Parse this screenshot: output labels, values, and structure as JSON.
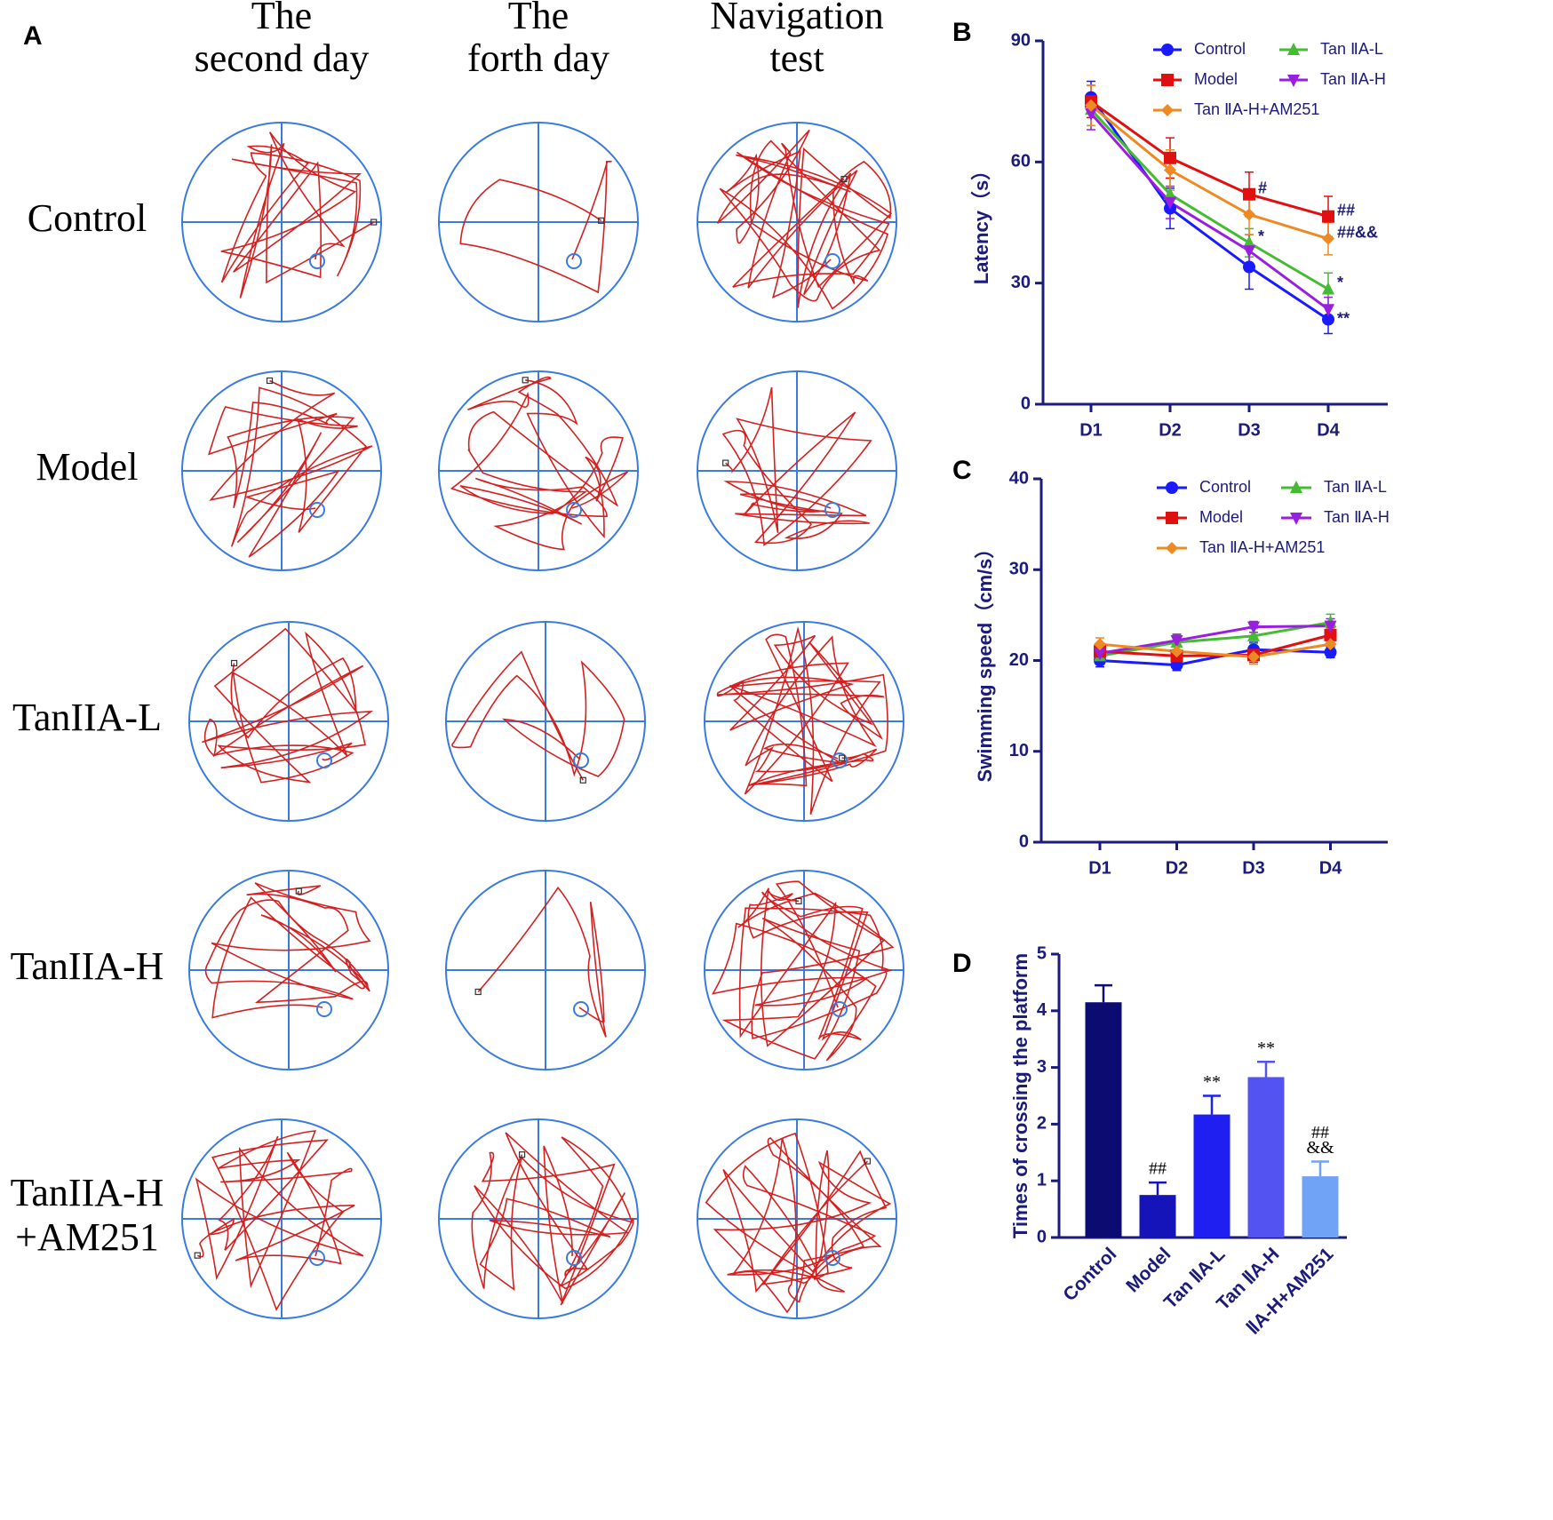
{
  "panel_a": {
    "label": "A",
    "columns": [
      [
        "The",
        "second day"
      ],
      [
        "The",
        "forth day"
      ],
      [
        "Navigation",
        "test"
      ]
    ],
    "rows": [
      [
        "Control"
      ],
      [
        "Model"
      ],
      [
        "TanIIA-L"
      ],
      [
        "TanIIA-H"
      ],
      [
        "TanIIA-H",
        "+AM251"
      ]
    ]
  },
  "chart_data": [
    {
      "type": "line",
      "panel": "B",
      "y_label": "Latency（s）",
      "categories": [
        "D1",
        "D2",
        "D3",
        "D4"
      ],
      "ylim": [
        0,
        90
      ],
      "yticks": [
        0,
        30,
        60,
        90
      ],
      "series": [
        {
          "name": "Control",
          "color": "#1a1aff",
          "marker": "circle",
          "values": [
            76,
            48.5,
            34,
            21
          ],
          "errors": [
            4,
            5,
            5.5,
            3.5
          ],
          "point_labels": [
            null,
            null,
            null,
            "**"
          ]
        },
        {
          "name": "Tan ⅡA-L",
          "color": "#44bb33",
          "marker": "triangle-up",
          "values": [
            73,
            52,
            40,
            28.5
          ],
          "errors": [
            4,
            4,
            3.5,
            4
          ],
          "point_labels": [
            null,
            null,
            "*",
            "*"
          ]
        },
        {
          "name": "Model",
          "color": "#e01010",
          "marker": "square",
          "values": [
            75,
            61,
            52,
            46.5
          ],
          "errors": [
            4,
            5,
            5.5,
            5
          ],
          "point_labels": [
            null,
            null,
            "#",
            "##"
          ]
        },
        {
          "name": "Tan ⅡA-H",
          "color": "#9a1ee0",
          "marker": "triangle-down",
          "values": [
            72,
            50,
            38,
            23.5
          ],
          "errors": [
            4,
            4,
            4,
            3
          ],
          "point_labels": [
            null,
            null,
            null,
            null
          ]
        },
        {
          "name": "Tan ⅡA-H+AM251",
          "color": "#ee8a22",
          "marker": "diamond",
          "values": [
            74,
            58,
            47,
            41
          ],
          "errors": [
            5,
            5,
            5,
            4
          ],
          "point_labels": [
            null,
            null,
            null,
            "##&&"
          ]
        }
      ]
    },
    {
      "type": "line",
      "panel": "C",
      "y_label": "Swimming speed（cm/s）",
      "categories": [
        "D1",
        "D2",
        "D3",
        "D4"
      ],
      "ylim": [
        0,
        40
      ],
      "yticks": [
        0,
        10,
        20,
        30,
        40
      ],
      "series": [
        {
          "name": "Control",
          "color": "#1a1aff",
          "marker": "circle",
          "values": [
            20,
            19.5,
            21.2,
            20.9
          ],
          "errors": [
            0.7,
            0.6,
            0.8,
            0.6
          ]
        },
        {
          "name": "Tan ⅡA-L",
          "color": "#44bb33",
          "marker": "triangle-up",
          "values": [
            20.5,
            22,
            22.7,
            24.2
          ],
          "errors": [
            0.7,
            0.8,
            0.8,
            0.9
          ]
        },
        {
          "name": "Model",
          "color": "#e01010",
          "marker": "square",
          "values": [
            21,
            20.5,
            20.6,
            22.8
          ],
          "errors": [
            0.7,
            0.7,
            0.8,
            0.8
          ]
        },
        {
          "name": "Tan ⅡA-H",
          "color": "#9a1ee0",
          "marker": "triangle-down",
          "values": [
            20.8,
            22.2,
            23.7,
            23.8
          ],
          "errors": [
            0.7,
            0.7,
            0.6,
            0.8
          ]
        },
        {
          "name": "Tan ⅡA-H+AM251",
          "color": "#ee8a22",
          "marker": "diamond",
          "values": [
            21.8,
            21,
            20.4,
            21.8
          ],
          "errors": [
            0.7,
            0.7,
            0.8,
            0.7
          ]
        }
      ]
    },
    {
      "type": "bar",
      "panel": "D",
      "y_label": "Times of crossing the platform",
      "categories": [
        "Control",
        "Model",
        "Tan ⅡA-L",
        "Tan ⅡA-H",
        "ⅡA-H+AM251"
      ],
      "values": [
        4.15,
        0.75,
        2.17,
        2.83,
        1.08
      ],
      "errors": [
        0.3,
        0.22,
        0.33,
        0.27,
        0.26
      ],
      "colors": [
        "#0b0b72",
        "#1414b8",
        "#1f1ff2",
        "#5353f2",
        "#70a2f6"
      ],
      "annotations": [
        null,
        [
          "##"
        ],
        [
          "**"
        ],
        [
          "**"
        ],
        [
          "##",
          "&&"
        ]
      ],
      "ylim": [
        0,
        5
      ],
      "yticks": [
        0,
        1,
        2,
        3,
        4,
        5
      ]
    }
  ]
}
